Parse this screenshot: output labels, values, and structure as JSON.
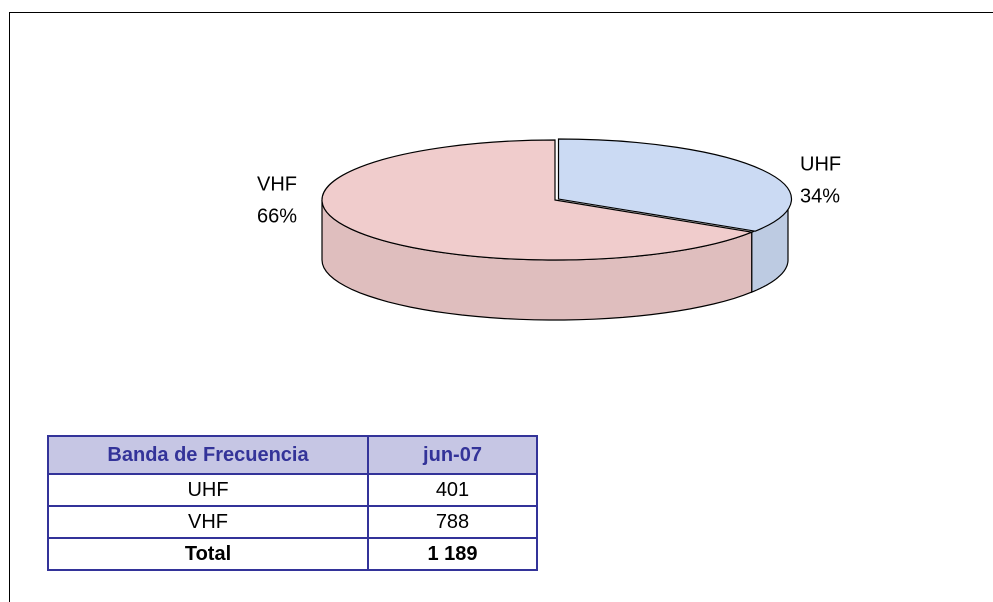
{
  "chart_data": {
    "type": "pie",
    "categories": [
      "UHF",
      "VHF"
    ],
    "values": [
      34,
      66
    ],
    "value_labels": [
      "34%",
      "66%"
    ],
    "colors": [
      "#cbdaf3",
      "#f0cccc"
    ]
  },
  "table": {
    "header": [
      "Banda de Frecuencia",
      "jun-07"
    ],
    "rows": [
      [
        "UHF",
        "401"
      ],
      [
        "VHF",
        "788"
      ],
      [
        "Total",
        "1 189"
      ]
    ]
  }
}
